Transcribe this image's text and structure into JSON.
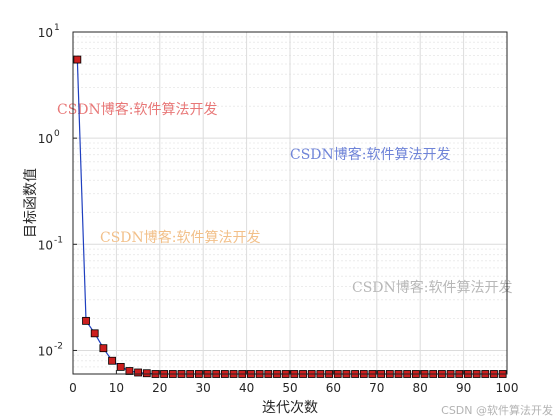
{
  "chart_data": {
    "type": "line",
    "xlabel": "迭代次数",
    "ylabel": "目标函数值",
    "yscale": "log",
    "xlim": [
      0,
      100
    ],
    "ylim": [
      0.006,
      10
    ],
    "x_ticks": [
      0,
      10,
      20,
      30,
      40,
      50,
      60,
      70,
      80,
      90,
      100
    ],
    "y_ticks": [
      {
        "value": 0.01,
        "base": "10",
        "exp": "-2"
      },
      {
        "value": 0.1,
        "base": "10",
        "exp": "-1"
      },
      {
        "value": 1,
        "base": "10",
        "exp": "0"
      },
      {
        "value": 10,
        "base": "10",
        "exp": "1"
      }
    ],
    "grid": true,
    "line_color": "#1f3fbf",
    "marker_color": "#cc1f1f",
    "marker": "square",
    "series": [
      {
        "x": [
          1,
          3,
          5,
          7,
          9,
          11,
          13,
          15,
          17,
          19,
          21,
          23,
          25,
          27,
          29,
          31,
          33,
          35,
          37,
          39,
          41,
          43,
          45,
          47,
          49,
          51,
          53,
          55,
          57,
          59,
          61,
          63,
          65,
          67,
          69,
          71,
          73,
          75,
          77,
          79,
          81,
          83,
          85,
          87,
          89,
          91,
          93,
          95,
          97,
          99
        ],
        "y": [
          5.5,
          0.019,
          0.0145,
          0.0105,
          0.008,
          0.007,
          0.0064,
          0.0062,
          0.0061,
          0.006,
          0.006,
          0.006,
          0.006,
          0.006,
          0.006,
          0.006,
          0.006,
          0.006,
          0.006,
          0.006,
          0.006,
          0.006,
          0.006,
          0.006,
          0.006,
          0.006,
          0.006,
          0.006,
          0.006,
          0.006,
          0.006,
          0.006,
          0.006,
          0.006,
          0.006,
          0.006,
          0.006,
          0.006,
          0.006,
          0.006,
          0.006,
          0.006,
          0.006,
          0.006,
          0.006,
          0.006,
          0.006,
          0.006,
          0.006,
          0.006
        ]
      }
    ]
  },
  "watermarks": [
    {
      "text": "CSDN博客:软件算法开发",
      "color": "#e87878"
    },
    {
      "text": "CSDN博客:软件算法开发",
      "color": "#6f84d8"
    },
    {
      "text": "CSDN博客:软件算法开发",
      "color": "#f2c08a"
    },
    {
      "text": "CSDN博客:软件算法开发",
      "color": "#b8b8b8"
    }
  ],
  "credit": "CSDN @软件算法开发"
}
